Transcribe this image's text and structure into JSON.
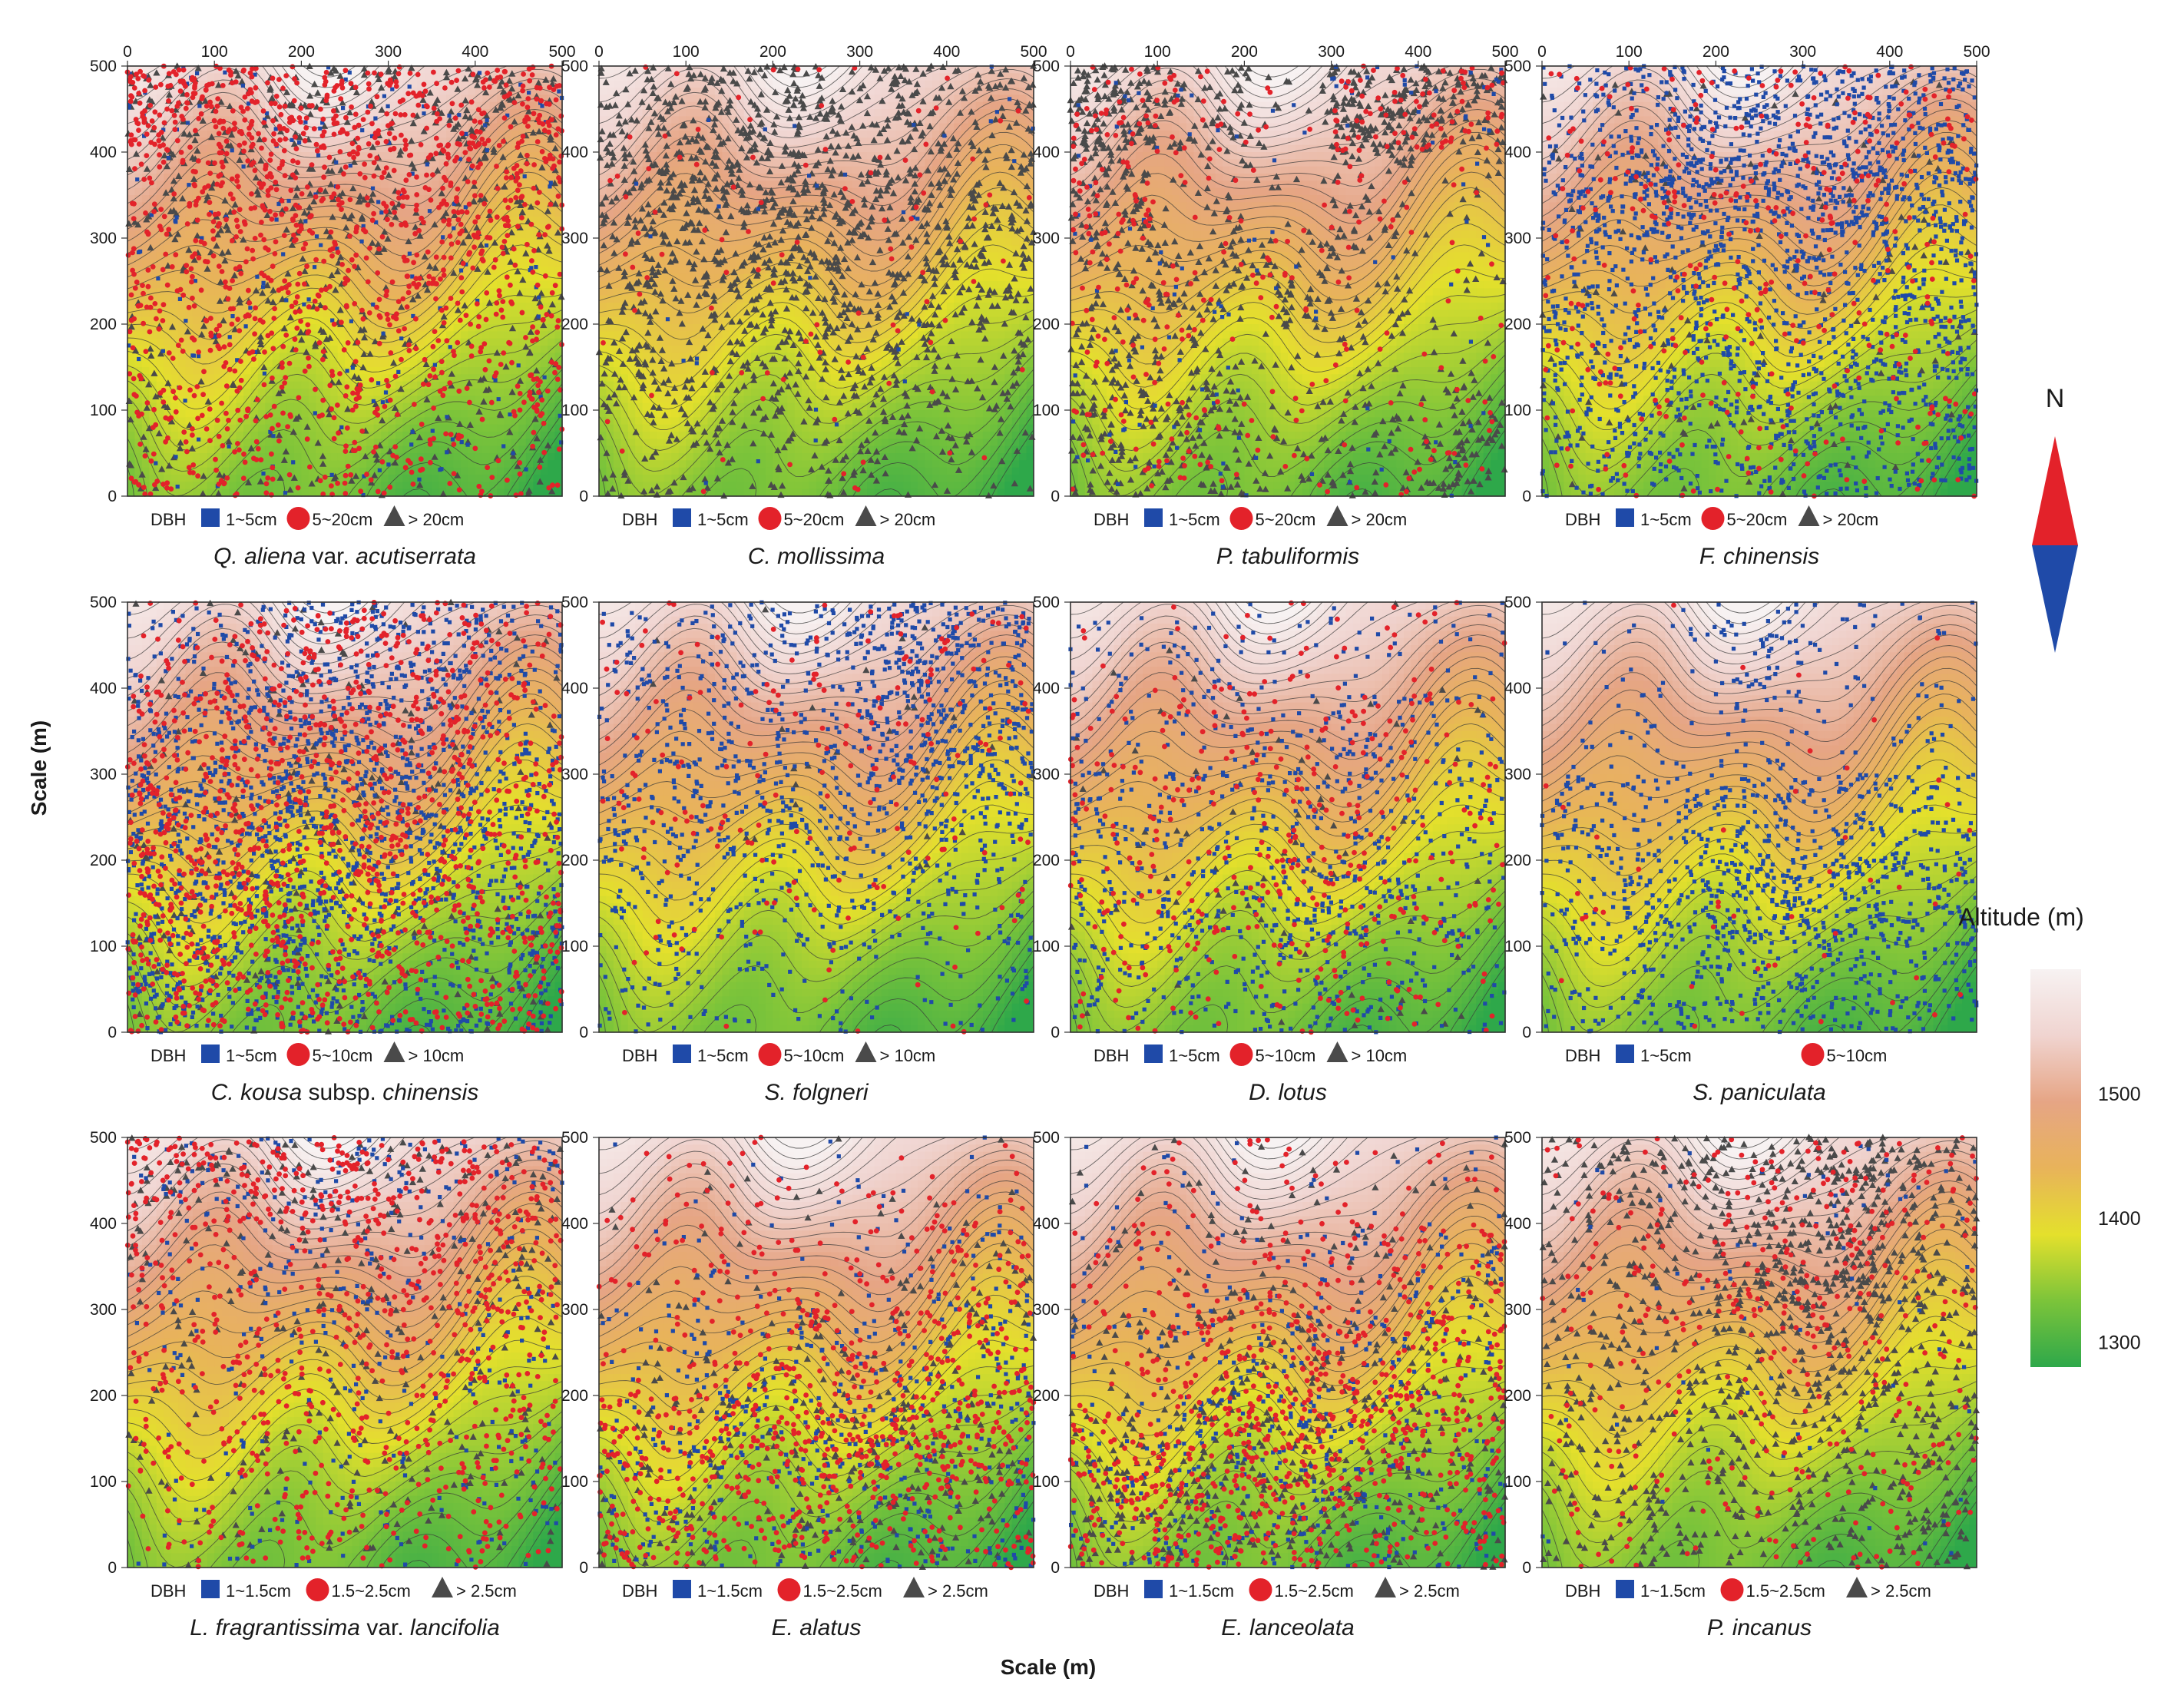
{
  "chart_data": {
    "type": "scatter",
    "subtype": "stem-map over altitude contour map",
    "xlabel": "Scale (m)",
    "ylabel": "Scale (m)",
    "xlim": [
      0,
      500
    ],
    "ylim": [
      0,
      500
    ],
    "x_ticks": [
      "0",
      "100",
      "200",
      "300",
      "400",
      "500"
    ],
    "y_ticks": [
      "0",
      "100",
      "200",
      "300",
      "400",
      "500"
    ],
    "legend_prefix": "DBH",
    "size_class_colors": [
      "#1f4aa8",
      "#e3222a",
      "#4a4a4a"
    ],
    "size_class_markers": [
      "square",
      "circle",
      "triangle"
    ],
    "compass": {
      "label": "N",
      "north_color": "#e3222a",
      "south_color": "#1f4aa8"
    },
    "altitude_legend": {
      "title": "Altitude (m)",
      "ticks": [
        "1500",
        "1400",
        "1300"
      ],
      "tick_values": [
        1500,
        1400,
        1300
      ],
      "range": [
        1280,
        1600
      ],
      "colors": [
        "#2ea84a",
        "#7cc43a",
        "#e4e02c",
        "#e8b35a",
        "#e6a585",
        "#f0d4d0",
        "#f7f2f2"
      ]
    },
    "panels": [
      {
        "species_parts": [
          {
            "t": "Q. aliena",
            "i": true
          },
          {
            "t": " var. ",
            "i": false
          },
          {
            "t": "acutiserrata",
            "i": true
          }
        ],
        "classes": [
          "1~5cm",
          "5~20cm",
          "> 20cm"
        ],
        "x_ticks_top": true,
        "density": [
          [
            0.55,
            0.55,
            0.5,
            0.45,
            0.4
          ],
          [
            0.5,
            0.6,
            0.55,
            0.5,
            0.45
          ],
          [
            0.6,
            0.7,
            0.65,
            0.6,
            0.55
          ],
          [
            0.8,
            0.95,
            0.9,
            0.85,
            0.8
          ],
          [
            1.0,
            1.0,
            1.0,
            0.95,
            0.9
          ]
        ],
        "mix": [
          0.1,
          0.6,
          0.3
        ],
        "n": 2300
      },
      {
        "species_parts": [
          {
            "t": "C. mollissima",
            "i": true
          }
        ],
        "classes": [
          "1~5cm",
          "5~20cm",
          "> 20cm"
        ],
        "x_ticks_top": true,
        "density": [
          [
            0.35,
            0.35,
            0.3,
            0.3,
            0.25
          ],
          [
            0.45,
            0.5,
            0.55,
            0.5,
            0.4
          ],
          [
            0.6,
            0.65,
            0.75,
            0.65,
            0.55
          ],
          [
            0.8,
            0.9,
            0.85,
            0.75,
            0.6
          ],
          [
            0.6,
            0.8,
            0.75,
            0.7,
            0.55
          ]
        ],
        "mix": [
          0.02,
          0.06,
          0.92
        ],
        "n": 1700
      },
      {
        "species_parts": [
          {
            "t": "P. tabuliformis",
            "i": true
          }
        ],
        "classes": [
          "1~5cm",
          "5~20cm",
          "> 20cm"
        ],
        "x_ticks_top": true,
        "density": [
          [
            0.5,
            0.45,
            0.2,
            0.25,
            0.4
          ],
          [
            0.45,
            0.3,
            0.2,
            0.15,
            0.2
          ],
          [
            0.35,
            0.35,
            0.4,
            0.2,
            0.1
          ],
          [
            0.6,
            0.2,
            0.1,
            0.35,
            0.2
          ],
          [
            0.85,
            0.4,
            0.15,
            0.95,
            0.8
          ]
        ],
        "mix": [
          0.07,
          0.23,
          0.7
        ],
        "n": 1700
      },
      {
        "species_parts": [
          {
            "t": "F. chinensis",
            "i": true
          }
        ],
        "classes": [
          "1~5cm",
          "5~20cm",
          "> 20cm"
        ],
        "x_ticks_top": true,
        "density": [
          [
            0.45,
            0.4,
            0.45,
            0.45,
            0.5
          ],
          [
            0.5,
            0.45,
            0.55,
            0.55,
            0.55
          ],
          [
            0.5,
            0.5,
            0.5,
            0.55,
            0.55
          ],
          [
            0.6,
            1.0,
            0.75,
            1.0,
            0.7
          ],
          [
            0.35,
            0.5,
            0.65,
            0.7,
            0.55
          ]
        ],
        "mix": [
          0.8,
          0.15,
          0.05
        ],
        "n": 2500
      },
      {
        "species_parts": [
          {
            "t": "C. kousa",
            "i": true
          },
          {
            "t": " subsp. ",
            "i": false
          },
          {
            "t": "chinensis",
            "i": true
          }
        ],
        "classes": [
          "1~5cm",
          "5~10cm",
          "> 10cm"
        ],
        "x_ticks_top": false,
        "density": [
          [
            0.95,
            0.85,
            0.7,
            0.55,
            0.5
          ],
          [
            1.0,
            0.95,
            0.85,
            0.7,
            0.6
          ],
          [
            0.9,
            0.95,
            0.9,
            0.85,
            0.6
          ],
          [
            0.6,
            0.8,
            0.85,
            0.75,
            0.45
          ],
          [
            0.3,
            0.55,
            0.75,
            0.7,
            0.55
          ]
        ],
        "mix": [
          0.55,
          0.38,
          0.07
        ],
        "n": 3400
      },
      {
        "species_parts": [
          {
            "t": "S. folgneri",
            "i": true
          }
        ],
        "classes": [
          "1~5cm",
          "5~10cm",
          "> 10cm"
        ],
        "x_ticks_top": false,
        "density": [
          [
            0.25,
            0.2,
            0.2,
            0.15,
            0.25
          ],
          [
            0.4,
            0.35,
            0.3,
            0.35,
            0.3
          ],
          [
            0.45,
            0.5,
            0.5,
            0.6,
            0.45
          ],
          [
            0.35,
            0.4,
            0.5,
            0.9,
            0.7
          ],
          [
            0.3,
            0.35,
            0.4,
            0.95,
            0.8
          ]
        ],
        "mix": [
          0.86,
          0.12,
          0.02
        ],
        "n": 1500
      },
      {
        "species_parts": [
          {
            "t": "D. lotus",
            "i": true
          }
        ],
        "classes": [
          "1~5cm",
          "5~10cm",
          "> 10cm"
        ],
        "x_ticks_top": false,
        "density": [
          [
            0.4,
            0.35,
            0.5,
            0.55,
            0.3
          ],
          [
            0.55,
            0.5,
            0.8,
            0.6,
            0.4
          ],
          [
            0.6,
            0.55,
            0.65,
            0.6,
            0.4
          ],
          [
            0.4,
            0.45,
            0.45,
            0.5,
            0.35
          ],
          [
            0.15,
            0.2,
            0.25,
            0.2,
            0.15
          ]
        ],
        "mix": [
          0.65,
          0.3,
          0.05
        ],
        "n": 1300
      },
      {
        "species_parts": [
          {
            "t": "S. paniculata",
            "i": true
          }
        ],
        "classes": [
          "1~5cm",
          "5~10cm"
        ],
        "x_ticks_top": false,
        "density": [
          [
            0.25,
            0.35,
            0.45,
            0.4,
            0.45
          ],
          [
            0.3,
            0.55,
            0.85,
            0.6,
            0.8
          ],
          [
            0.4,
            0.45,
            0.55,
            0.4,
            0.45
          ],
          [
            0.1,
            0.15,
            0.2,
            0.15,
            0.1
          ],
          [
            0.05,
            0.1,
            0.3,
            0.15,
            0.05
          ]
        ],
        "mix": [
          0.97,
          0.03,
          0.0
        ],
        "n": 1200
      },
      {
        "species_parts": [
          {
            "t": "L. fragrantissima",
            "i": true
          },
          {
            "t": " var. ",
            "i": false
          },
          {
            "t": "lancifolia",
            "i": true
          }
        ],
        "classes": [
          "1~1.5cm",
          "1.5~2.5cm",
          "> 2.5cm"
        ],
        "x_ticks_top": false,
        "density": [
          [
            0.35,
            0.35,
            0.4,
            0.4,
            0.45
          ],
          [
            0.35,
            0.4,
            0.45,
            0.5,
            0.5
          ],
          [
            0.4,
            0.45,
            0.5,
            0.6,
            0.55
          ],
          [
            0.45,
            0.5,
            0.55,
            0.6,
            0.6
          ],
          [
            0.8,
            0.85,
            0.85,
            0.85,
            0.8
          ]
        ],
        "mix": [
          0.25,
          0.55,
          0.2
        ],
        "n": 1600
      },
      {
        "species_parts": [
          {
            "t": "E. alatus",
            "i": true
          }
        ],
        "classes": [
          "1~1.5cm",
          "1.5~2.5cm",
          "> 2.5cm"
        ],
        "x_ticks_top": false,
        "density": [
          [
            0.6,
            0.55,
            0.6,
            0.65,
            0.55
          ],
          [
            0.7,
            0.7,
            0.85,
            0.9,
            0.7
          ],
          [
            0.3,
            0.45,
            0.7,
            0.6,
            0.65
          ],
          [
            0.2,
            0.25,
            0.3,
            0.35,
            0.45
          ],
          [
            0.1,
            0.2,
            0.15,
            0.1,
            0.1
          ]
        ],
        "mix": [
          0.3,
          0.5,
          0.2
        ],
        "n": 1700
      },
      {
        "species_parts": [
          {
            "t": "E. lanceolata",
            "i": true
          }
        ],
        "classes": [
          "1~1.5cm",
          "1.5~2.5cm",
          "> 2.5cm"
        ],
        "x_ticks_top": false,
        "density": [
          [
            0.6,
            0.7,
            0.8,
            0.6,
            0.45
          ],
          [
            0.6,
            0.8,
            1.0,
            0.75,
            0.55
          ],
          [
            0.3,
            0.5,
            0.75,
            0.6,
            0.55
          ],
          [
            0.2,
            0.25,
            0.3,
            0.4,
            0.45
          ],
          [
            0.1,
            0.15,
            0.2,
            0.15,
            0.1
          ]
        ],
        "mix": [
          0.3,
          0.45,
          0.25
        ],
        "n": 1900
      },
      {
        "species_parts": [
          {
            "t": "P. incanus",
            "i": true
          }
        ],
        "classes": [
          "1~1.5cm",
          "1.5~2.5cm",
          "> 2.5cm"
        ],
        "x_ticks_top": false,
        "density": [
          [
            0.4,
            0.3,
            0.3,
            0.3,
            0.4
          ],
          [
            0.4,
            0.3,
            0.35,
            0.35,
            0.45
          ],
          [
            0.35,
            0.35,
            0.5,
            0.55,
            0.4
          ],
          [
            0.25,
            0.4,
            0.7,
            0.95,
            0.45
          ],
          [
            0.4,
            0.35,
            0.6,
            0.9,
            0.5
          ]
        ],
        "mix": [
          0.05,
          0.25,
          0.7
        ],
        "n": 1500
      }
    ]
  }
}
